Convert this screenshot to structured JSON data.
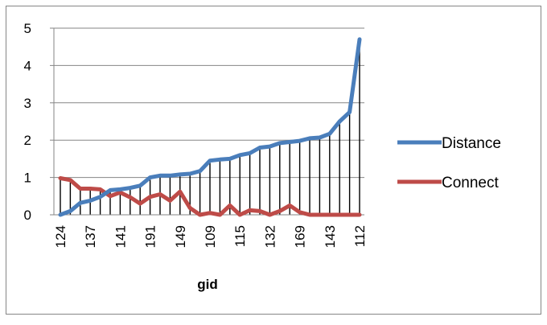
{
  "chart_data": {
    "type": "line",
    "title": "",
    "xlabel": "gid",
    "ylabel": "",
    "ylim": [
      0,
      5
    ],
    "yticks": [
      0,
      1,
      2,
      3,
      4,
      5
    ],
    "grid": true,
    "drop_lines": true,
    "legend_position": "right",
    "x_tick_labels": [
      "124",
      "137",
      "141",
      "191",
      "149",
      "109",
      "115",
      "132",
      "169",
      "143",
      "112"
    ],
    "series": [
      {
        "name": "Distance",
        "color": "#4a7ebb",
        "values": [
          0.0,
          0.1,
          0.32,
          0.38,
          0.48,
          0.66,
          0.68,
          0.72,
          0.78,
          1.0,
          1.05,
          1.05,
          1.08,
          1.1,
          1.17,
          1.45,
          1.48,
          1.5,
          1.6,
          1.65,
          1.8,
          1.83,
          1.92,
          1.95,
          1.98,
          2.05,
          2.07,
          2.17,
          2.5,
          2.75,
          4.7
        ]
      },
      {
        "name": "Connect",
        "color": "#be4b48",
        "values": [
          0.98,
          0.93,
          0.7,
          0.7,
          0.68,
          0.5,
          0.6,
          0.47,
          0.3,
          0.48,
          0.55,
          0.38,
          0.62,
          0.18,
          0.0,
          0.05,
          0.0,
          0.25,
          0.0,
          0.12,
          0.1,
          0.0,
          0.1,
          0.25,
          0.07,
          0.0,
          0.0,
          0.0,
          0.0,
          0.0,
          0.0
        ]
      }
    ]
  }
}
